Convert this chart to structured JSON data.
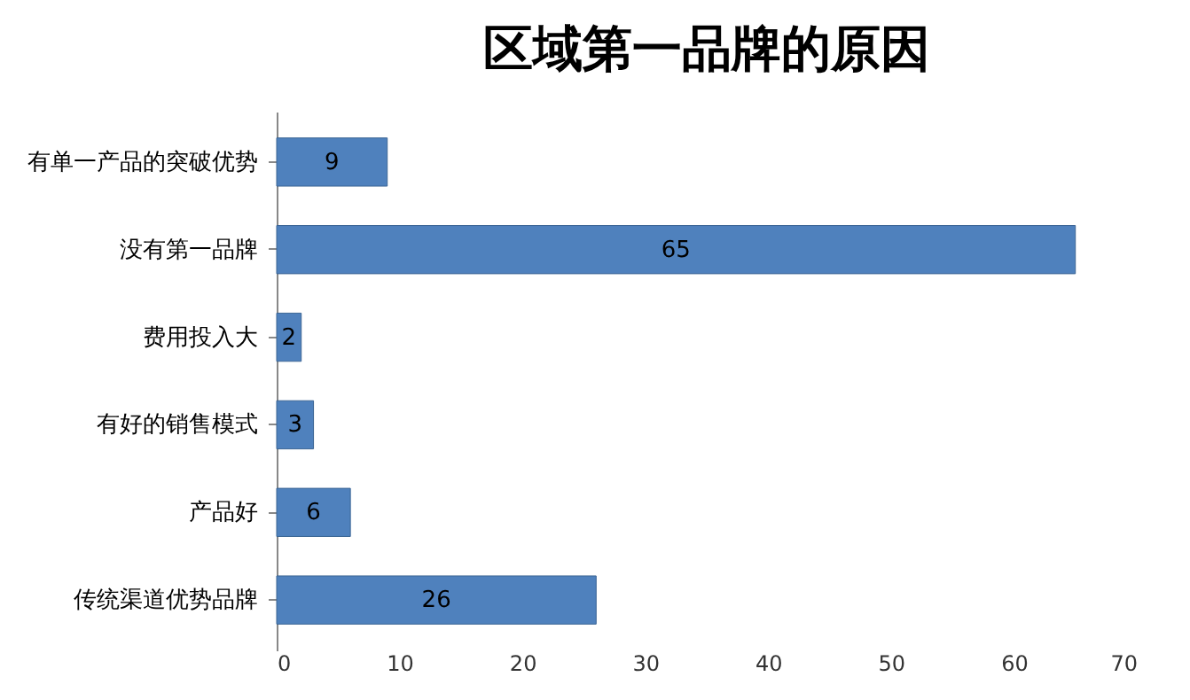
{
  "chart_data": {
    "type": "bar",
    "title": "区域第一品牌的原因",
    "orientation": "horizontal",
    "categories": [
      "有单一产品的突破优势",
      "没有第一品牌",
      "费用投入大",
      "有好的销售模式",
      "产品好",
      "传统渠道优势品牌"
    ],
    "values": [
      9,
      65,
      2,
      3,
      6,
      26
    ],
    "color": "#4f81bd",
    "xlim": [
      0,
      70
    ],
    "xticks": [
      0,
      10,
      20,
      30,
      40,
      50,
      60,
      70
    ],
    "grid": false,
    "data_labels": true
  }
}
